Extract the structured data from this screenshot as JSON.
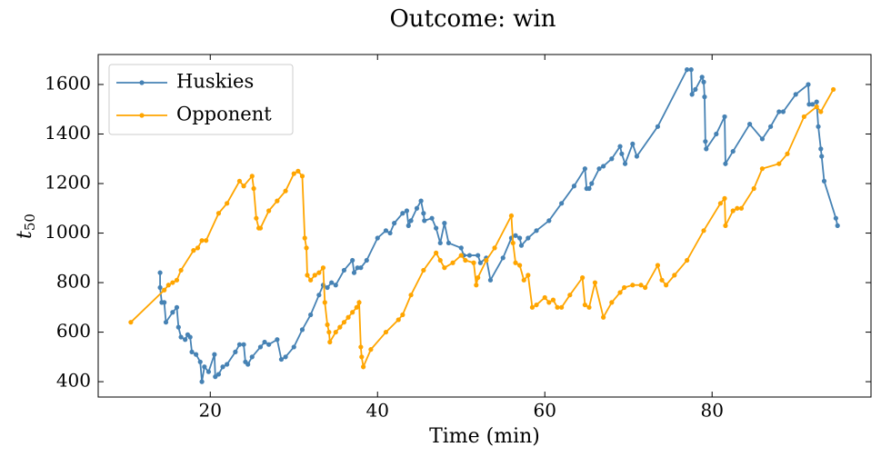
{
  "chart_data": {
    "type": "line",
    "title": "Outcome: win",
    "xlabel": "Time (min)",
    "ylabel": "t",
    "ylabel_subscript": "50",
    "xlim": [
      6.6,
      99.0
    ],
    "ylim": [
      338,
      1721
    ],
    "xticks": [
      20,
      40,
      60,
      80
    ],
    "yticks": [
      400,
      600,
      800,
      1000,
      1200,
      1400,
      1600
    ],
    "legend": "upper left",
    "series": [
      {
        "name": "Huskies",
        "color": "#4682b4",
        "x": [
          14,
          14,
          14.2,
          14.5,
          14.7,
          15.5,
          16,
          16.2,
          16.5,
          17,
          17.3,
          17.6,
          17.8,
          18.3,
          18.8,
          19,
          19.3,
          19.8,
          20.5,
          20.6,
          21,
          21.5,
          22,
          23,
          23.5,
          24,
          24.2,
          24.5,
          25,
          26,
          26.5,
          27,
          28,
          28.5,
          29,
          30,
          31,
          32,
          33,
          33.5,
          34,
          34.5,
          35,
          36,
          37,
          37.2,
          37.6,
          38,
          38.7,
          40,
          41,
          41.5,
          42,
          43,
          43.5,
          43.7,
          44,
          44.7,
          45.2,
          45.5,
          45.6,
          46.5,
          47,
          47.5,
          48,
          48.5,
          50,
          50.3,
          51,
          52,
          52.3,
          53,
          53.5,
          55,
          56,
          56.5,
          57,
          57.2,
          58,
          59,
          60.5,
          62,
          63.5,
          64.8,
          65,
          65.3,
          65.6,
          66.5,
          67,
          68,
          69,
          69.2,
          69.6,
          70.5,
          71,
          73.5,
          77,
          77.5,
          77.6,
          78,
          78.8,
          79,
          79.1,
          79.2,
          79.3,
          80.5,
          81.5,
          81.6,
          82.5,
          84.5,
          86,
          87,
          88,
          88.5,
          90,
          91.5,
          91.6,
          92,
          92.5,
          92.7,
          93,
          93.1,
          93.4,
          94.8,
          95
        ],
        "values": [
          840,
          780,
          720,
          720,
          640,
          680,
          700,
          620,
          580,
          570,
          590,
          580,
          520,
          510,
          480,
          400,
          460,
          440,
          510,
          420,
          430,
          460,
          470,
          520,
          550,
          550,
          480,
          470,
          500,
          540,
          560,
          550,
          570,
          490,
          500,
          540,
          610,
          670,
          750,
          790,
          780,
          800,
          790,
          850,
          890,
          840,
          860,
          860,
          890,
          980,
          1010,
          1000,
          1040,
          1080,
          1090,
          1030,
          1050,
          1100,
          1130,
          1080,
          1050,
          1060,
          1020,
          960,
          1040,
          960,
          940,
          910,
          910,
          910,
          880,
          900,
          810,
          900,
          980,
          990,
          980,
          950,
          980,
          1010,
          1050,
          1120,
          1190,
          1260,
          1180,
          1180,
          1200,
          1260,
          1270,
          1300,
          1350,
          1320,
          1280,
          1360,
          1310,
          1430,
          1660,
          1660,
          1560,
          1580,
          1630,
          1610,
          1550,
          1370,
          1340,
          1400,
          1470,
          1280,
          1330,
          1440,
          1380,
          1430,
          1490,
          1490,
          1560,
          1600,
          1520,
          1520,
          1530,
          1430,
          1340,
          1310,
          1210,
          1060,
          1030
        ]
      },
      {
        "name": "Opponent",
        "color": "#ffa500",
        "x": [
          10.5,
          14.5,
          15,
          15.5,
          16,
          16.5,
          18,
          18.5,
          19,
          19.5,
          21,
          22,
          23.5,
          24,
          25,
          25.2,
          25.5,
          25.8,
          26,
          27,
          28,
          29,
          30,
          30.5,
          31,
          31.3,
          31.5,
          31.6,
          32,
          32.5,
          33,
          33.5,
          33.7,
          34,
          34.2,
          34.3,
          35,
          35.5,
          36,
          36.5,
          37,
          37.5,
          37.8,
          38,
          38.1,
          38.3,
          39.2,
          41,
          42.5,
          43,
          44,
          45.5,
          47,
          47.5,
          48,
          49,
          50,
          50.5,
          51.5,
          51.8,
          52,
          53,
          54,
          56,
          56.2,
          56.5,
          57,
          57.5,
          58,
          58.5,
          59,
          60,
          60.5,
          61,
          61.5,
          62,
          63,
          64.5,
          64.8,
          65.3,
          66,
          67,
          68,
          69,
          69.5,
          70.5,
          71.5,
          72,
          73.5,
          74,
          74.5,
          75.5,
          77,
          79,
          81,
          81.5,
          81.6,
          82.5,
          83,
          83.5,
          85,
          86,
          88,
          89,
          91,
          92.5,
          93,
          94.5
        ],
        "values": [
          640,
          770,
          790,
          800,
          810,
          850,
          930,
          940,
          970,
          970,
          1080,
          1120,
          1210,
          1190,
          1230,
          1180,
          1060,
          1020,
          1020,
          1090,
          1130,
          1170,
          1240,
          1250,
          1230,
          980,
          940,
          830,
          810,
          830,
          840,
          860,
          720,
          630,
          600,
          560,
          600,
          620,
          640,
          660,
          680,
          700,
          720,
          540,
          500,
          460,
          530,
          600,
          650,
          670,
          750,
          850,
          920,
          890,
          860,
          880,
          910,
          890,
          880,
          790,
          820,
          890,
          940,
          1070,
          960,
          880,
          870,
          810,
          830,
          700,
          710,
          740,
          720,
          730,
          700,
          700,
          750,
          820,
          710,
          700,
          800,
          660,
          720,
          760,
          780,
          790,
          790,
          780,
          870,
          810,
          790,
          830,
          890,
          1010,
          1120,
          1140,
          1030,
          1090,
          1100,
          1100,
          1180,
          1260,
          1280,
          1320,
          1470,
          1510,
          1490,
          1580
        ]
      }
    ]
  }
}
